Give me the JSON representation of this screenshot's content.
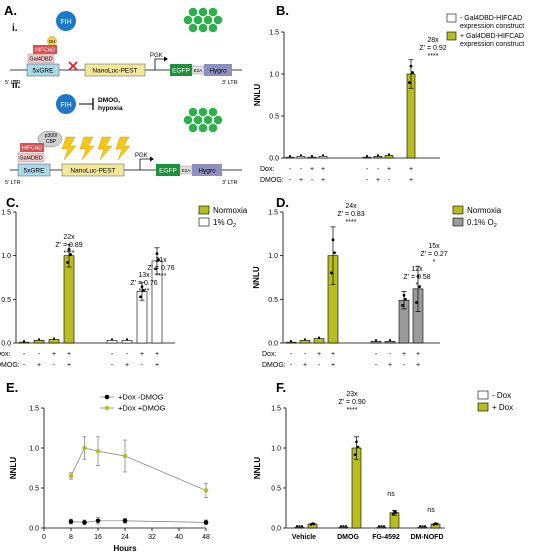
{
  "colors": {
    "olive": "#b8bd1f",
    "gray": "#9a9a9a",
    "blue": "#1f77c8",
    "green": "#2bb04a",
    "egfp": "#1e8f3c",
    "hygro": "#8d8fc0",
    "gre": "#a9d8e6",
    "nano": "#f3e89a",
    "gal4": "#f3c9c9",
    "hifcad": "#d95050",
    "p300": "#cfcfcf",
    "bolt": "#f5c518"
  },
  "panelA": {
    "letter": "A.",
    "sub1": "i.",
    "sub2": "ii.",
    "fih": "FIH",
    "oh": "OH",
    "hifcad": "HIFCAD",
    "gal4dbd": "Gal4DBD",
    "gre": "5xGRE",
    "nanoluc": "NanoLuc-PEST",
    "pgk": "PGK",
    "egfp": "EGFP",
    "e2a": "E2A",
    "hygro": "Hygro",
    "ltr5": "5' LTR",
    "ltr3": "3' LTR",
    "inhibitors": "DMOG,\nhypoxia",
    "inh1": "DMOG,",
    "inh2": "hypoxia",
    "p300a": "p300/",
    "p300b": "CBP"
  },
  "panelB": {
    "letter": "B.",
    "ylabel": "NNLU",
    "legend": [
      "- Gal4DBD-HIFCAD expression construct",
      "+ Gal4DBD-HIFCAD expression construct"
    ],
    "legend_lines": [
      [
        "- Gal4DBD-HIFCAD",
        "expression construct"
      ],
      [
        "+ Gal4DBD-HIFCAD",
        "expression construct"
      ]
    ],
    "annot": [
      "28x",
      "Z' = 0.92",
      "****"
    ],
    "rows": {
      "dox_label": "Dox:",
      "dmog_label": "DMOG:",
      "dox": [
        "-",
        "-",
        "+",
        "+",
        "-",
        "-",
        "+",
        "+"
      ],
      "dmog": [
        "-",
        "+",
        "-",
        "+",
        "-",
        "+",
        "-",
        "+"
      ]
    }
  },
  "panelC": {
    "letter": "C.",
    "ylabel": "NNLU",
    "legend": [
      "Normoxia",
      "1% O2"
    ],
    "annots": [
      [
        "22x",
        "Z' = 0.89",
        "****"
      ],
      [
        "13x",
        "Z' = 0.76",
        "****"
      ],
      [
        "21x",
        "Z' = 0.76",
        "****"
      ]
    ],
    "rows": {
      "dox_label": "Dox:",
      "dmog_label": "DMOG:",
      "dox": [
        "-",
        "-",
        "+",
        "+",
        "-",
        "-",
        "+",
        "+"
      ],
      "dmog": [
        "-",
        "+",
        "-",
        "+",
        "-",
        "+",
        "-",
        "+"
      ]
    }
  },
  "panelD": {
    "letter": "D.",
    "ylabel": "NNLU",
    "legend": [
      "Normoxia",
      "0.1% O2"
    ],
    "annots": [
      [
        "24x",
        "Z' = 0.83",
        "****"
      ],
      [
        "12x",
        "Z' = 0.58",
        "*"
      ],
      [
        "15x",
        "Z' = 0.27",
        "*"
      ]
    ],
    "rows": {
      "dox_label": "Dox:",
      "dmog_label": "DMOG:",
      "dox": [
        "-",
        "-",
        "+",
        "+",
        "-",
        "-",
        "+",
        "+"
      ],
      "dmog": [
        "-",
        "+",
        "-",
        "+",
        "-",
        "+",
        "-",
        "+"
      ]
    }
  },
  "panelE": {
    "letter": "E.",
    "xlabel": "Hours",
    "ylabel": "NNLU",
    "legend": [
      "+Dox -DMOG",
      "+Dox +DMOG"
    ]
  },
  "panelF": {
    "letter": "F.",
    "ylabel": "NNLU",
    "legend": [
      "- Dox",
      "+ Dox"
    ],
    "annots": [
      [
        "23x",
        "Z' = 0.90",
        "****"
      ],
      [
        "ns"
      ],
      [
        "ns"
      ]
    ]
  },
  "chart_data": [
    {
      "type": "bar",
      "panel": "B",
      "categories": [
        "1",
        "2",
        "3",
        "4",
        "5",
        "6",
        "7",
        "8"
      ],
      "series": [
        {
          "name": "- Gal4DBD-HIFCAD expression construct",
          "values": [
            0.01,
            0.02,
            0.01,
            0.02,
            null,
            null,
            null,
            null
          ]
        },
        {
          "name": "+ Gal4DBD-HIFCAD expression construct",
          "values": [
            null,
            null,
            null,
            null,
            0.01,
            0.02,
            0.03,
            1.0
          ]
        }
      ],
      "error": [
        0.005,
        0.01,
        0.005,
        0.01,
        0.005,
        0.01,
        0.01,
        0.17
      ],
      "ylabel": "NNLU",
      "ylim": [
        0,
        1.5
      ],
      "yticks": [
        0.0,
        0.5,
        1.0,
        1.5
      ]
    },
    {
      "type": "bar",
      "panel": "C",
      "categories": [
        "1",
        "2",
        "3",
        "4",
        "5",
        "6",
        "7",
        "8"
      ],
      "series": [
        {
          "name": "Normoxia",
          "values": [
            0.01,
            0.03,
            0.04,
            1.0,
            null,
            null,
            null,
            null
          ]
        },
        {
          "name": "1% O2",
          "values": [
            null,
            null,
            null,
            null,
            0.03,
            0.03,
            0.59,
            0.94
          ]
        }
      ],
      "error": [
        0.01,
        0.02,
        0.02,
        0.13,
        0.02,
        0.02,
        0.1,
        0.15
      ],
      "ylabel": "NNLU",
      "ylim": [
        0,
        1.5
      ],
      "yticks": [
        0.0,
        0.5,
        1.0,
        1.5
      ]
    },
    {
      "type": "bar",
      "panel": "D",
      "categories": [
        "1",
        "2",
        "3",
        "4",
        "5",
        "6",
        "7",
        "8"
      ],
      "series": [
        {
          "name": "Normoxia",
          "values": [
            0.01,
            0.03,
            0.05,
            1.0,
            null,
            null,
            null,
            null
          ]
        },
        {
          "name": "0.1% O2",
          "values": [
            null,
            null,
            null,
            null,
            0.02,
            0.02,
            0.49,
            0.62
          ]
        }
      ],
      "error": [
        0.01,
        0.01,
        0.01,
        0.33,
        0.01,
        0.01,
        0.1,
        0.26
      ],
      "ylabel": "NNLU",
      "ylim": [
        0,
        1.5
      ],
      "yticks": [
        0.0,
        0.5,
        1.0,
        1.5
      ]
    },
    {
      "type": "line",
      "panel": "E",
      "series": [
        {
          "name": "+Dox -DMOG",
          "x": [
            8,
            12,
            16,
            24,
            48
          ],
          "y": [
            0.08,
            0.07,
            0.09,
            0.09,
            0.07
          ],
          "err": [
            0.03,
            0.03,
            0.04,
            0.03,
            0.03
          ]
        },
        {
          "name": "+Dox +DMOG",
          "x": [
            8,
            12,
            16,
            24,
            48
          ],
          "y": [
            0.65,
            1.0,
            0.96,
            0.9,
            0.47
          ],
          "err": [
            0.04,
            0.14,
            0.18,
            0.2,
            0.09
          ]
        }
      ],
      "xlabel": "Hours",
      "ylabel": "NNLU",
      "xlim": [
        0,
        48
      ],
      "ylim": [
        0,
        1.5
      ],
      "xticks": [
        0,
        8,
        16,
        24,
        32,
        40,
        48
      ],
      "yticks": [
        0.0,
        0.5,
        1.0,
        1.5
      ]
    },
    {
      "type": "bar",
      "panel": "F",
      "categories": [
        "Vehicle",
        "DMOG",
        "FG-4592",
        "DM-NOFD"
      ],
      "series": [
        {
          "name": "- Dox",
          "values": [
            0.01,
            0.01,
            0.01,
            0.01
          ]
        },
        {
          "name": "+ Dox",
          "values": [
            0.05,
            1.0,
            0.19,
            0.05
          ]
        }
      ],
      "ylabel": "NNLU",
      "ylim": [
        0,
        1.5
      ],
      "yticks": [
        0.0,
        0.5,
        1.0,
        1.5
      ]
    }
  ]
}
